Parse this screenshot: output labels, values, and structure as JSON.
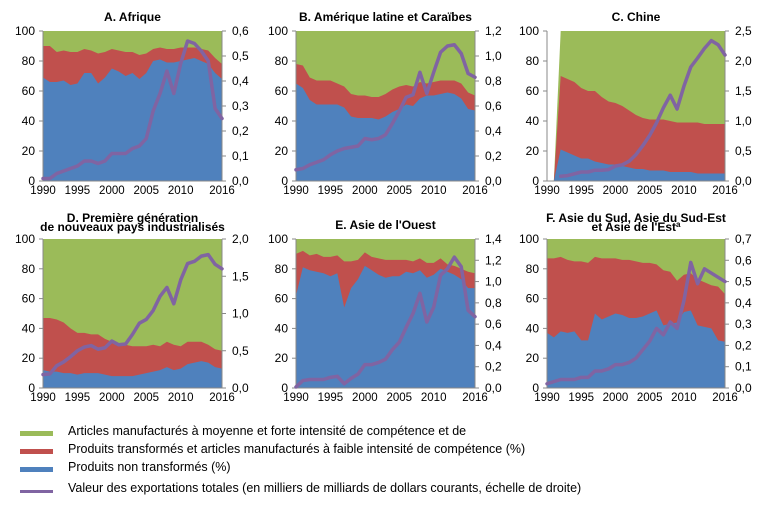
{
  "colors": {
    "high_skill": "#9bbb59",
    "low_skill": "#c0504d",
    "raw": "#4f81bd",
    "exports": "#8064a2",
    "axis": "#888888"
  },
  "chart_data": [
    {
      "id": "A",
      "type": "area",
      "title": [
        "A. Afrique"
      ],
      "x": [
        1990,
        1991,
        1992,
        1993,
        1994,
        1995,
        1996,
        1997,
        1998,
        1999,
        2000,
        2001,
        2002,
        2003,
        2004,
        2005,
        2006,
        2007,
        2008,
        2009,
        2010,
        2011,
        2012,
        2013,
        2014,
        2015,
        2016
      ],
      "xticks": [
        1990,
        1995,
        2000,
        2005,
        2010,
        2016
      ],
      "ylim_left": [
        0,
        100
      ],
      "yticks_left": [
        "0",
        "20",
        "40",
        "60",
        "80",
        "100"
      ],
      "ylim_right": [
        0,
        0.6
      ],
      "yticks_right": [
        "0,0",
        "0,1",
        "0,2",
        "0,3",
        "0,4",
        "0,5",
        "0,6"
      ],
      "series": [
        {
          "name": "raw",
          "values": [
            69,
            66,
            66,
            67,
            64,
            65,
            72,
            72,
            65,
            69,
            75,
            73,
            70,
            72,
            68,
            72,
            80,
            81,
            79,
            79,
            80,
            81,
            82,
            80,
            78,
            72,
            68
          ]
        },
        {
          "name": "raw_plus_low",
          "values": [
            90,
            90,
            86,
            87,
            86,
            86,
            88,
            87,
            85,
            86,
            88,
            87,
            86,
            86,
            84,
            85,
            88,
            89,
            88,
            88,
            89,
            89,
            89,
            88,
            87,
            82,
            78
          ]
        },
        {
          "name": "exports",
          "values": [
            0.01,
            0.01,
            0.03,
            0.04,
            0.05,
            0.06,
            0.08,
            0.08,
            0.07,
            0.08,
            0.11,
            0.11,
            0.11,
            0.13,
            0.14,
            0.17,
            0.28,
            0.35,
            0.44,
            0.35,
            0.47,
            0.56,
            0.55,
            0.52,
            0.48,
            0.29,
            0.25
          ]
        }
      ]
    },
    {
      "id": "B",
      "type": "area",
      "title": [
        "B. Amérique latine et Caraïbes"
      ],
      "x": [
        1990,
        1991,
        1992,
        1993,
        1994,
        1995,
        1996,
        1997,
        1998,
        1999,
        2000,
        2001,
        2002,
        2003,
        2004,
        2005,
        2006,
        2007,
        2008,
        2009,
        2010,
        2011,
        2012,
        2013,
        2014,
        2015,
        2016
      ],
      "xticks": [
        1990,
        1995,
        2000,
        2005,
        2010,
        2016
      ],
      "ylim_left": [
        0,
        100
      ],
      "yticks_left": [
        "0",
        "20",
        "40",
        "60",
        "80",
        "100"
      ],
      "ylim_right": [
        0,
        1.2
      ],
      "yticks_right": [
        "0,0",
        "0,2",
        "0,4",
        "0,6",
        "0,8",
        "1,0",
        "1,2"
      ],
      "series": [
        {
          "name": "raw",
          "values": [
            65,
            62,
            54,
            51,
            51,
            51,
            51,
            49,
            43,
            42,
            42,
            42,
            41,
            43,
            46,
            48,
            51,
            50,
            55,
            57,
            57,
            58,
            59,
            58,
            55,
            48,
            47
          ]
        },
        {
          "name": "raw_plus_low",
          "values": [
            78,
            77,
            69,
            67,
            67,
            67,
            65,
            63,
            58,
            57,
            57,
            56,
            56,
            58,
            61,
            63,
            64,
            63,
            66,
            65,
            66,
            67,
            67,
            67,
            65,
            59,
            57
          ]
        },
        {
          "name": "exports",
          "values": [
            0.09,
            0.1,
            0.13,
            0.15,
            0.17,
            0.21,
            0.24,
            0.26,
            0.27,
            0.28,
            0.34,
            0.33,
            0.34,
            0.37,
            0.46,
            0.56,
            0.67,
            0.69,
            0.87,
            0.7,
            0.87,
            1.03,
            1.08,
            1.09,
            1.02,
            0.86,
            0.83
          ]
        }
      ]
    },
    {
      "id": "C",
      "type": "area",
      "title": [
        "C. Chine"
      ],
      "x": [
        1990,
        1991,
        1992,
        1993,
        1994,
        1995,
        1996,
        1997,
        1998,
        1999,
        2000,
        2001,
        2002,
        2003,
        2004,
        2005,
        2006,
        2007,
        2008,
        2009,
        2010,
        2011,
        2012,
        2013,
        2014,
        2015,
        2016
      ],
      "xticks": [
        1990,
        1995,
        2000,
        2005,
        2010,
        2016
      ],
      "ylim_left": [
        0,
        100
      ],
      "yticks_left": [
        "0",
        "20",
        "40",
        "60",
        "80",
        "100"
      ],
      "ylim_right": [
        0,
        2.5
      ],
      "yticks_right": [
        "0,0",
        "0,5",
        "1,0",
        "1,5",
        "2,0",
        "2,5"
      ],
      "series": [
        {
          "name": "raw",
          "values": [
            null,
            0,
            21,
            19,
            17,
            15,
            15,
            13,
            12,
            11,
            11,
            10,
            9,
            8,
            8,
            7,
            7,
            7,
            6,
            6,
            6,
            6,
            5,
            5,
            5,
            5,
            5
          ]
        },
        {
          "name": "raw_plus_low",
          "values": [
            null,
            0,
            70,
            68,
            66,
            62,
            60,
            60,
            56,
            53,
            52,
            50,
            47,
            44,
            42,
            41,
            41,
            41,
            40,
            39,
            39,
            39,
            39,
            38,
            38,
            38,
            38
          ]
        },
        {
          "name": "exports",
          "values": [
            null,
            null,
            0.08,
            0.09,
            0.12,
            0.15,
            0.15,
            0.18,
            0.18,
            0.19,
            0.25,
            0.27,
            0.33,
            0.44,
            0.59,
            0.76,
            0.97,
            1.22,
            1.43,
            1.2,
            1.58,
            1.9,
            2.05,
            2.21,
            2.34,
            2.27,
            2.1
          ]
        }
      ]
    },
    {
      "id": "D",
      "type": "area",
      "title": [
        "D. Première génération",
        "de nouveaux pays industrialisés"
      ],
      "x": [
        1990,
        1991,
        1992,
        1993,
        1994,
        1995,
        1996,
        1997,
        1998,
        1999,
        2000,
        2001,
        2002,
        2003,
        2004,
        2005,
        2006,
        2007,
        2008,
        2009,
        2010,
        2011,
        2012,
        2013,
        2014,
        2015,
        2016
      ],
      "xticks": [
        1990,
        1995,
        2000,
        2005,
        2010,
        2016
      ],
      "ylim_left": [
        0,
        100
      ],
      "yticks_left": [
        "0",
        "20",
        "40",
        "60",
        "80",
        "100"
      ],
      "ylim_right": [
        0,
        2.0
      ],
      "yticks_right": [
        "0,0",
        "0,5",
        "1,0",
        "1,5",
        "2,0"
      ],
      "series": [
        {
          "name": "raw",
          "values": [
            12,
            11,
            11,
            10,
            10,
            9,
            10,
            10,
            10,
            9,
            8,
            8,
            8,
            8,
            9,
            10,
            11,
            12,
            14,
            12,
            13,
            16,
            17,
            18,
            17,
            14,
            13
          ]
        },
        {
          "name": "raw_plus_low",
          "values": [
            47,
            47,
            46,
            44,
            40,
            37,
            37,
            36,
            36,
            33,
            31,
            29,
            29,
            28,
            28,
            28,
            29,
            28,
            31,
            29,
            28,
            31,
            31,
            31,
            29,
            26,
            25
          ]
        },
        {
          "name": "exports",
          "values": [
            0.18,
            0.19,
            0.3,
            0.35,
            0.42,
            0.5,
            0.55,
            0.57,
            0.52,
            0.54,
            0.63,
            0.58,
            0.59,
            0.72,
            0.87,
            0.92,
            1.04,
            1.23,
            1.35,
            1.13,
            1.45,
            1.67,
            1.7,
            1.77,
            1.79,
            1.66,
            1.6
          ]
        }
      ]
    },
    {
      "id": "E",
      "type": "area",
      "title": [
        "E. Asie de l'Ouest"
      ],
      "x": [
        1990,
        1991,
        1992,
        1993,
        1994,
        1995,
        1996,
        1997,
        1998,
        1999,
        2000,
        2001,
        2002,
        2003,
        2004,
        2005,
        2006,
        2007,
        2008,
        2009,
        2010,
        2011,
        2012,
        2013,
        2014,
        2015,
        2016
      ],
      "xticks": [
        1990,
        1995,
        2000,
        2005,
        2010,
        2016
      ],
      "ylim_left": [
        0,
        100
      ],
      "yticks_left": [
        "0",
        "20",
        "40",
        "60",
        "80",
        "100"
      ],
      "ylim_right": [
        0,
        1.4
      ],
      "yticks_right": [
        "0,0",
        "0,2",
        "0,4",
        "0,6",
        "0,8",
        "1,0",
        "1,2",
        "1,4"
      ],
      "series": [
        {
          "name": "raw",
          "values": [
            62,
            81,
            79,
            78,
            77,
            75,
            77,
            54,
            67,
            73,
            82,
            79,
            76,
            74,
            75,
            75,
            78,
            77,
            79,
            74,
            76,
            80,
            78,
            76,
            73,
            67,
            67
          ]
        },
        {
          "name": "raw_plus_low",
          "values": [
            90,
            92,
            89,
            90,
            88,
            88,
            89,
            85,
            85,
            86,
            91,
            88,
            87,
            86,
            86,
            86,
            86,
            85,
            87,
            84,
            84,
            87,
            83,
            82,
            80,
            78,
            77
          ]
        },
        {
          "name": "exports",
          "values": [
            0.01,
            0.07,
            0.08,
            0.08,
            0.08,
            0.1,
            0.11,
            0.04,
            0.09,
            0.13,
            0.22,
            0.22,
            0.24,
            0.27,
            0.36,
            0.43,
            0.57,
            0.7,
            0.89,
            0.62,
            0.76,
            1.06,
            1.12,
            1.23,
            1.14,
            0.73,
            0.67
          ]
        }
      ]
    },
    {
      "id": "F",
      "type": "area",
      "title": [
        "F. Asie du Sud, Asie du Sud-Est",
        "et Asie de l'Est"
      ],
      "title_superscript": "a",
      "x": [
        1990,
        1991,
        1992,
        1993,
        1994,
        1995,
        1996,
        1997,
        1998,
        1999,
        2000,
        2001,
        2002,
        2003,
        2004,
        2005,
        2006,
        2007,
        2008,
        2009,
        2010,
        2011,
        2012,
        2013,
        2014,
        2015,
        2016
      ],
      "xticks": [
        1990,
        1995,
        2000,
        2005,
        2010,
        2016
      ],
      "ylim_left": [
        0,
        100
      ],
      "yticks_left": [
        "0",
        "20",
        "40",
        "60",
        "80",
        "100"
      ],
      "ylim_right": [
        0,
        0.7
      ],
      "yticks_right": [
        "0,0",
        "0,1",
        "0,2",
        "0,3",
        "0,4",
        "0,5",
        "0,6",
        "0,7"
      ],
      "series": [
        {
          "name": "raw",
          "values": [
            37,
            34,
            38,
            37,
            38,
            32,
            32,
            50,
            46,
            48,
            50,
            49,
            47,
            47,
            48,
            50,
            52,
            42,
            43,
            44,
            51,
            52,
            42,
            41,
            40,
            32,
            31
          ]
        },
        {
          "name": "raw_plus_low",
          "values": [
            87,
            87,
            88,
            86,
            85,
            85,
            84,
            88,
            87,
            87,
            87,
            86,
            86,
            85,
            84,
            84,
            83,
            79,
            78,
            72,
            76,
            77,
            73,
            71,
            69,
            68,
            63
          ]
        },
        {
          "name": "exports",
          "values": [
            0.02,
            0.03,
            0.04,
            0.04,
            0.04,
            0.05,
            0.05,
            0.08,
            0.08,
            0.09,
            0.11,
            0.11,
            0.12,
            0.14,
            0.18,
            0.22,
            0.28,
            0.25,
            0.31,
            0.28,
            0.41,
            0.59,
            0.49,
            0.56,
            0.54,
            0.52,
            0.5
          ]
        }
      ]
    }
  ],
  "legend": [
    {
      "key": "high_skill",
      "kind": "area",
      "label": "Articles manufacturés à moyenne et forte intensité de compétence et de"
    },
    {
      "key": "low_skill",
      "kind": "area",
      "label": "Produits transformés et articles manufacturés à faible intensité de compétence (%)"
    },
    {
      "key": "raw",
      "kind": "area",
      "label": "Produits non transformés (%)"
    },
    {
      "key": "exports",
      "kind": "line",
      "label": "Valeur des exportations totales (en milliers de milliards de dollars courants, échelle de droite)"
    }
  ]
}
